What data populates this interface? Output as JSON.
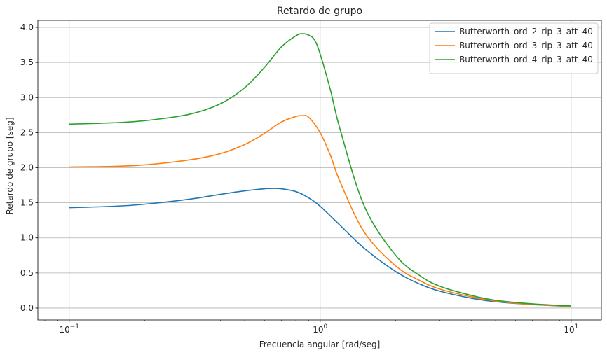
{
  "chart_data": {
    "type": "line",
    "title": "Retardo de grupo",
    "xlabel": "Frecuencia angular [rad/seg]",
    "ylabel": "Retardo de grupo [seg]",
    "xscale": "log",
    "xlim": [
      0.075,
      13.2
    ],
    "ylim": [
      -0.17,
      4.1
    ],
    "grid": true,
    "legend_position": "top-right",
    "x_ticks": [
      {
        "value": 0.1,
        "base": "10",
        "exp": "−1"
      },
      {
        "value": 1,
        "base": "10",
        "exp": "0"
      },
      {
        "value": 10,
        "base": "10",
        "exp": "1"
      }
    ],
    "y_ticks": [
      0.0,
      0.5,
      1.0,
      1.5,
      2.0,
      2.5,
      3.0,
      3.5,
      4.0
    ],
    "y_tick_labels": [
      "0.0",
      "0.5",
      "1.0",
      "1.5",
      "2.0",
      "2.5",
      "3.0",
      "3.5",
      "4.0"
    ],
    "series": [
      {
        "name": "Butterworth_ord_2_rip_3_att_40",
        "color": "#1f77b4",
        "x": [
          0.1,
          0.15,
          0.2,
          0.3,
          0.4,
          0.5,
          0.6,
          0.65,
          0.7,
          0.8,
          0.9,
          1.0,
          1.2,
          1.5,
          2.0,
          2.5,
          3.0,
          4.0,
          5.0,
          7.0,
          10.0
        ],
        "y": [
          1.43,
          1.45,
          1.48,
          1.55,
          1.62,
          1.67,
          1.7,
          1.705,
          1.7,
          1.66,
          1.57,
          1.45,
          1.18,
          0.85,
          0.52,
          0.34,
          0.24,
          0.14,
          0.09,
          0.05,
          0.02
        ]
      },
      {
        "name": "Butterworth_ord_3_rip_3_att_40",
        "color": "#ff7f0e",
        "x": [
          0.1,
          0.15,
          0.2,
          0.3,
          0.4,
          0.5,
          0.6,
          0.7,
          0.8,
          0.85,
          0.9,
          1.0,
          1.1,
          1.2,
          1.5,
          2.0,
          2.5,
          3.0,
          4.0,
          5.0,
          7.0,
          10.0
        ],
        "y": [
          2.01,
          2.02,
          2.04,
          2.11,
          2.2,
          2.33,
          2.49,
          2.65,
          2.73,
          2.74,
          2.72,
          2.5,
          2.17,
          1.8,
          1.08,
          0.6,
          0.39,
          0.27,
          0.16,
          0.1,
          0.05,
          0.025
        ]
      },
      {
        "name": "Butterworth_ord_4_rip_3_att_40",
        "color": "#2ca02c",
        "x": [
          0.1,
          0.15,
          0.2,
          0.3,
          0.4,
          0.5,
          0.6,
          0.7,
          0.8,
          0.85,
          0.9,
          0.95,
          1.0,
          1.1,
          1.2,
          1.5,
          2.0,
          2.5,
          3.0,
          4.0,
          5.0,
          7.0,
          10.0
        ],
        "y": [
          2.62,
          2.64,
          2.67,
          2.76,
          2.91,
          3.14,
          3.43,
          3.72,
          3.88,
          3.91,
          3.89,
          3.82,
          3.62,
          3.1,
          2.55,
          1.45,
          0.75,
          0.46,
          0.31,
          0.18,
          0.11,
          0.06,
          0.03
        ]
      }
    ]
  }
}
